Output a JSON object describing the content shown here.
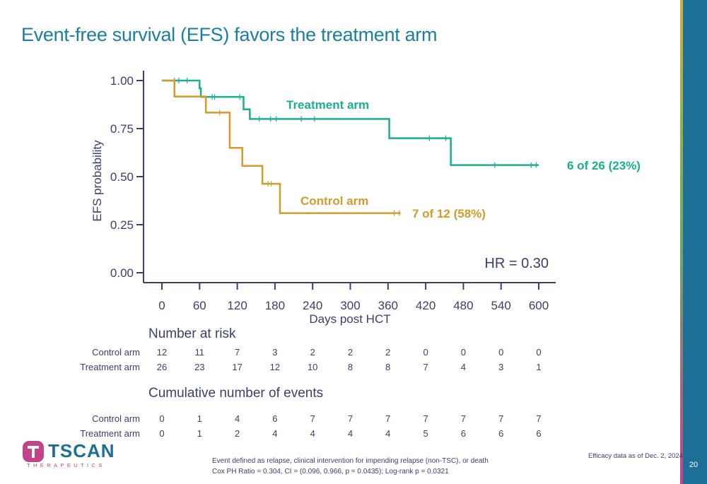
{
  "title": "Event-free survival (EFS) favors the treatment arm",
  "chart_data": {
    "type": "line",
    "subtype": "kaplan-meier",
    "ylabel": "EFS probability",
    "xlabel": "Days post HCT",
    "x_ticks": [
      "0",
      "60",
      "120",
      "180",
      "240",
      "300",
      "360",
      "420",
      "480",
      "540",
      "600"
    ],
    "y_ticks": [
      "0.00",
      "0.25",
      "0.50",
      "0.75",
      "1.00"
    ],
    "xlim": [
      -30,
      630
    ],
    "ylim": [
      0,
      1.05
    ],
    "series": [
      {
        "name": "Treatment arm",
        "color": "#18b08e",
        "steps": [
          [
            0,
            1.0
          ],
          [
            60,
            0.96
          ],
          [
            62,
            0.915
          ],
          [
            130,
            0.85
          ],
          [
            140,
            0.8
          ],
          [
            362,
            0.7
          ],
          [
            460,
            0.56
          ],
          [
            600,
            0.56
          ]
        ],
        "censors": [
          [
            20,
            1.0
          ],
          [
            27,
            1.0
          ],
          [
            40,
            1.0
          ],
          [
            80,
            0.915
          ],
          [
            84,
            0.915
          ],
          [
            124,
            0.915
          ],
          [
            155,
            0.8
          ],
          [
            173,
            0.8
          ],
          [
            182,
            0.8
          ],
          [
            222,
            0.8
          ],
          [
            243,
            0.8
          ],
          [
            426,
            0.7
          ],
          [
            452,
            0.7
          ],
          [
            530,
            0.56
          ],
          [
            588,
            0.56
          ],
          [
            596,
            0.56
          ]
        ],
        "end_label": "6 of 26 (23%)"
      },
      {
        "name": "Control arm",
        "color": "#d49a2a",
        "steps": [
          [
            0,
            1.0
          ],
          [
            20,
            0.917
          ],
          [
            70,
            0.833
          ],
          [
            108,
            0.65
          ],
          [
            128,
            0.556
          ],
          [
            160,
            0.463
          ],
          [
            188,
            0.31
          ],
          [
            380,
            0.31
          ]
        ],
        "censors": [
          [
            92,
            0.833
          ],
          [
            169,
            0.463
          ],
          [
            174,
            0.463
          ],
          [
            370,
            0.31
          ],
          [
            378,
            0.31
          ]
        ],
        "end_label": "7 of 12 (58%)"
      }
    ],
    "annotation": "HR = 0.30"
  },
  "risk_table": {
    "title": "Number at risk",
    "rows": [
      {
        "label": "Control arm",
        "values": [
          "12",
          "11",
          "7",
          "3",
          "2",
          "2",
          "2",
          "0",
          "0",
          "0",
          "0"
        ]
      },
      {
        "label": "Treatment arm",
        "values": [
          "26",
          "23",
          "17",
          "12",
          "10",
          "8",
          "8",
          "7",
          "4",
          "3",
          "1"
        ]
      }
    ]
  },
  "events_table": {
    "title": "Cumulative number of events",
    "rows": [
      {
        "label": "Control arm",
        "values": [
          "0",
          "1",
          "4",
          "6",
          "7",
          "7",
          "7",
          "7",
          "7",
          "7",
          "7"
        ]
      },
      {
        "label": "Treatment arm",
        "values": [
          "0",
          "1",
          "2",
          "4",
          "4",
          "4",
          "4",
          "5",
          "6",
          "6",
          "6"
        ]
      }
    ]
  },
  "footnote_lines": [
    "Event defined as relapse, clinical intervention for impending relapse (non-TSC), or death",
    "Cox PH Ratio = 0.304, CI = (0.096, 0.966, p = 0.0435); Log-rank p = 0.0321"
  ],
  "as_of": "Efficacy data as of Dec. 2, 2024",
  "slide_number": "20",
  "logo": {
    "word": "TSCAN",
    "sub": "THERAPEUTICS"
  }
}
